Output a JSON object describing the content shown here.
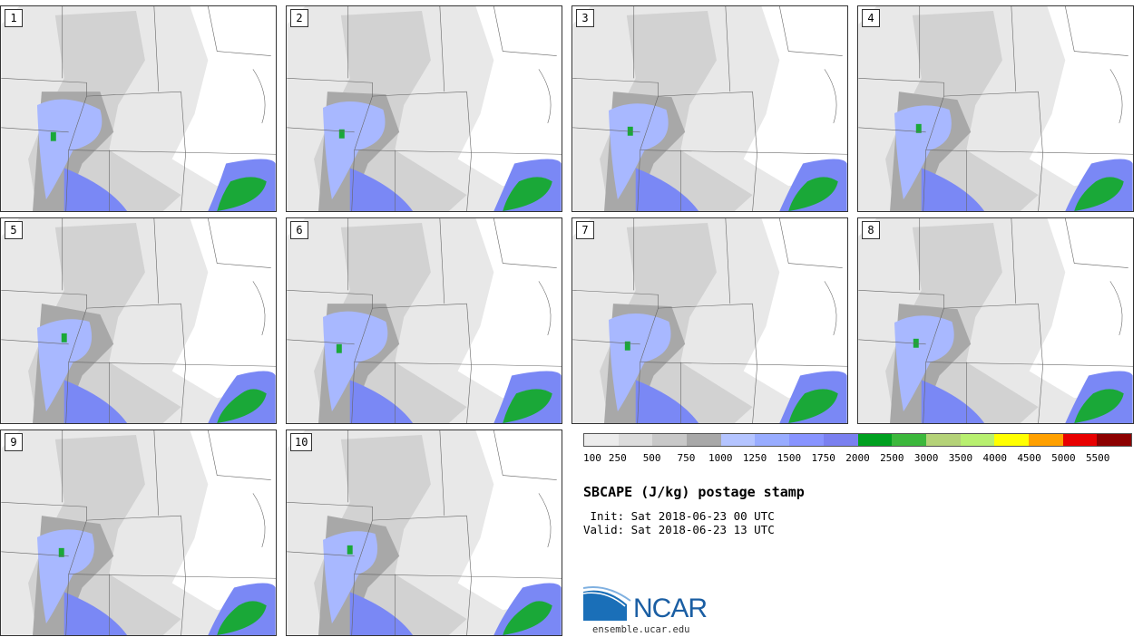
{
  "title": "SBCAPE (J/kg) postage stamp",
  "init_text": " Init: Sat 2018-06-23 00 UTC",
  "valid_text": "Valid: Sat 2018-06-23 13 UTC",
  "site": "ensemble.ucar.edu",
  "logo_text": "NCAR",
  "panels": [
    {
      "label": "1"
    },
    {
      "label": "2"
    },
    {
      "label": "3"
    },
    {
      "label": "4"
    },
    {
      "label": "5"
    },
    {
      "label": "6"
    },
    {
      "label": "7"
    },
    {
      "label": "8"
    },
    {
      "label": "9"
    },
    {
      "label": "10"
    }
  ],
  "colorbar": {
    "levels": [
      "100",
      "250",
      "500",
      "750",
      "1000",
      "1250",
      "1500",
      "1750",
      "2000",
      "2500",
      "3000",
      "3500",
      "4000",
      "4500",
      "5000",
      "5500"
    ],
    "colors": [
      "#ececec",
      "#dcdcdc",
      "#c8c8c8",
      "#a8a8a8",
      "#b4c4ff",
      "#98acff",
      "#8894ff",
      "#7a80f0",
      "#00a020",
      "#3cb83c",
      "#b4d278",
      "#b8f070",
      "#ffff00",
      "#ffa000",
      "#e80000",
      "#8c0000"
    ]
  },
  "map_colors": {
    "light": "#e8e8e8",
    "mid": "#d2d2d2",
    "dark": "#a8a8a8",
    "blue_light": "#a8b8ff",
    "blue": "#7a88f5",
    "green": "#1aa838"
  }
}
